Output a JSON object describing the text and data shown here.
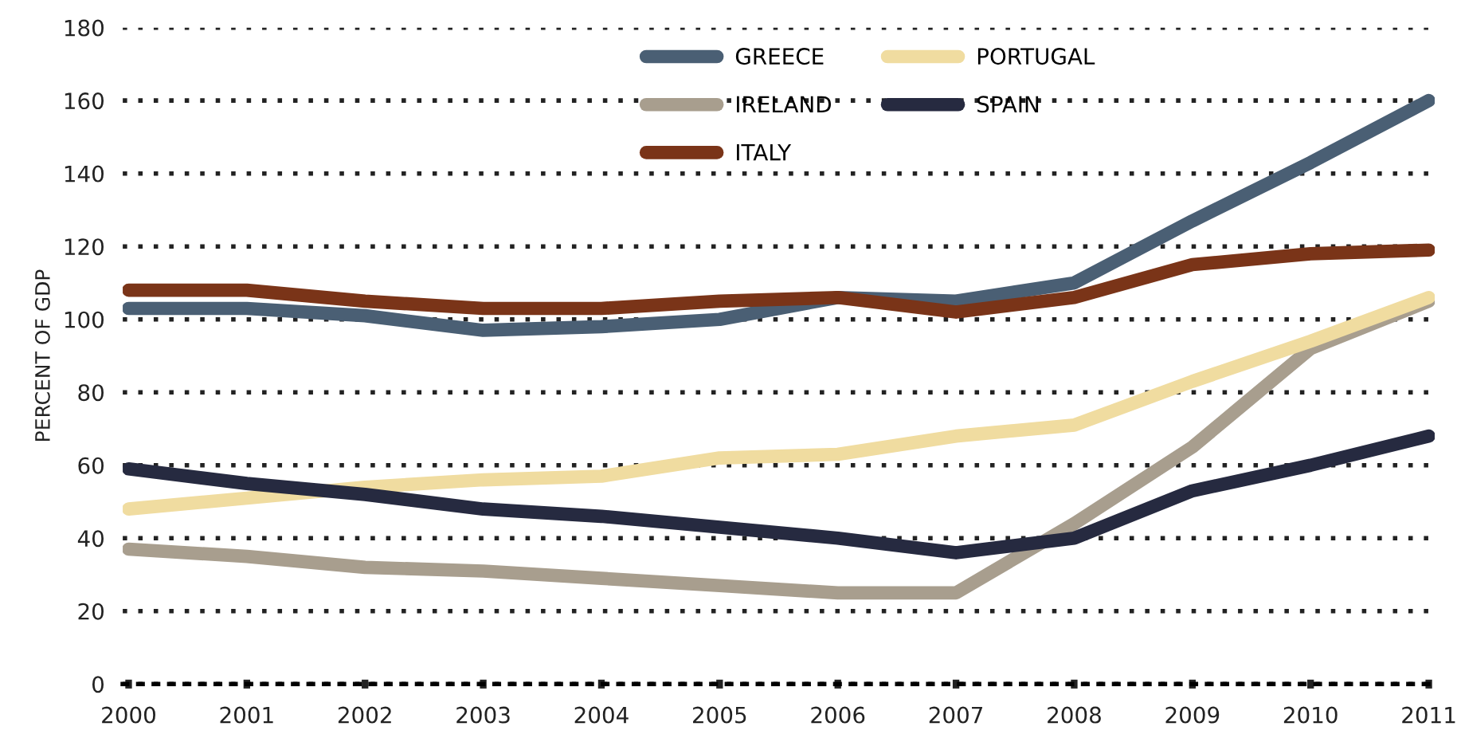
{
  "chart_data": {
    "type": "line",
    "ylabel": "PERCENT OF GDP",
    "categories": [
      "2000",
      "2001",
      "2002",
      "2003",
      "2004",
      "2005",
      "2006",
      "2007",
      "2008",
      "2009",
      "2010",
      "2011"
    ],
    "series": [
      {
        "name": "GREECE",
        "color": "#4a5f74",
        "values": [
          103,
          103,
          101,
          97,
          98,
          100,
          106,
          105,
          110,
          127,
          143,
          160
        ]
      },
      {
        "name": "IRELAND",
        "color": "#a89e8e",
        "values": [
          37,
          35,
          32,
          31,
          29,
          27,
          25,
          25,
          44,
          65,
          92,
          105
        ]
      },
      {
        "name": "ITALY",
        "color": "#7a3418",
        "values": [
          108,
          108,
          105,
          103,
          103,
          105,
          106,
          102,
          106,
          115,
          118,
          119
        ]
      },
      {
        "name": "PORTUGAL",
        "color": "#f0dca0",
        "values": [
          48,
          51,
          54,
          56,
          57,
          62,
          63,
          68,
          71,
          83,
          94,
          106
        ]
      },
      {
        "name": "SPAIN",
        "color": "#262a40",
        "values": [
          59,
          55,
          52,
          48,
          46,
          43,
          40,
          36,
          40,
          53,
          60,
          68
        ]
      }
    ],
    "ylim": [
      0,
      180
    ],
    "yticks": [
      0,
      20,
      40,
      60,
      80,
      100,
      120,
      140,
      160,
      180
    ],
    "grid": "y",
    "legend": "top",
    "marker": "none",
    "line_style": "solid"
  }
}
